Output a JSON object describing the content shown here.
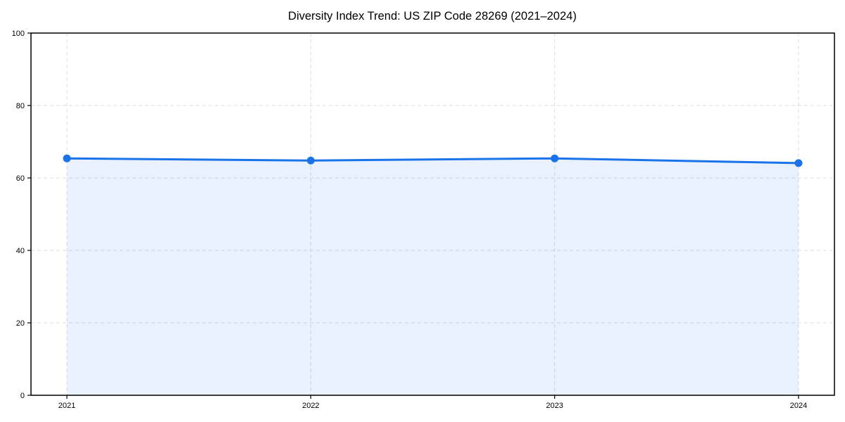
{
  "page": {
    "background": "#ffffff"
  },
  "chart_data": {
    "type": "line",
    "title": "Diversity Index Trend: US ZIP Code 28269 (2021–2024)",
    "x": [
      "2021",
      "2022",
      "2023",
      "2024"
    ],
    "series": [
      {
        "name": "Diversity Index",
        "values": [
          65.4,
          64.8,
          65.4,
          64.1
        ]
      }
    ],
    "xlabel": "",
    "ylabel": "",
    "ylim": [
      0,
      100
    ],
    "yticks": [
      0,
      20,
      40,
      60,
      80,
      100
    ],
    "grid": true,
    "grid_style": "dashed",
    "legend_position": "none",
    "area_fill": true,
    "marker": "circle",
    "colors": {
      "line": "#1a73e8",
      "marker": "#1a73e8",
      "fill": "rgba(26,115,232,0.10)",
      "grid": "#dcdcdc",
      "spine": "#000000",
      "tick_label": "#000000",
      "title": "#000000",
      "background": "#ffffff"
    }
  }
}
